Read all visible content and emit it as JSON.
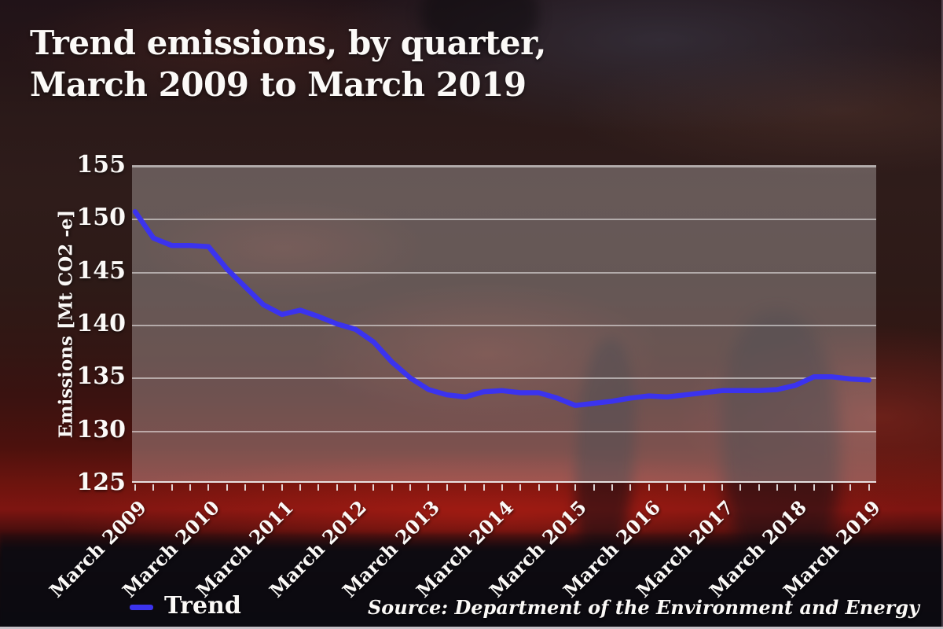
{
  "title": {
    "line1": "Trend emissions, by quarter,",
    "line2": "March 2009 to March 2019"
  },
  "y_axis": {
    "label": "Emissions [Mt CO2 -e]",
    "ticks": [
      155,
      150,
      145,
      140,
      135,
      130,
      125
    ]
  },
  "x_axis": {
    "shown_labels": [
      "March 2009",
      "March 2010",
      "March 2011",
      "March 2012",
      "March 2013",
      "March 2014",
      "March 2015",
      "March 2016",
      "March 2017",
      "March 2018",
      "March 2019"
    ],
    "quarters_per_shown_label": 4
  },
  "legend": {
    "label": "Trend",
    "color": "#3b33ee"
  },
  "source": "Source: Department of the Environment and Energy",
  "colors": {
    "line": "#3b33ee",
    "text": "#fbf9f7",
    "plot_overlay": "rgba(255,255,255,0.27)"
  },
  "chart_data": {
    "type": "line",
    "title": "Trend emissions, by quarter, March 2009 to March 2019",
    "ylabel": "Emissions [Mt CO2 -e]",
    "xlabel": "",
    "ylim": [
      125,
      155
    ],
    "grid": "horizontal",
    "legend_position": "bottom-left",
    "line_color": "#3b33ee",
    "x": [
      "Mar 2009",
      "Jun 2009",
      "Sep 2009",
      "Dec 2009",
      "Mar 2010",
      "Jun 2010",
      "Sep 2010",
      "Dec 2010",
      "Mar 2011",
      "Jun 2011",
      "Sep 2011",
      "Dec 2011",
      "Mar 2012",
      "Jun 2012",
      "Sep 2012",
      "Dec 2012",
      "Mar 2013",
      "Jun 2013",
      "Sep 2013",
      "Dec 2013",
      "Mar 2014",
      "Jun 2014",
      "Sep 2014",
      "Dec 2014",
      "Mar 2015",
      "Jun 2015",
      "Sep 2015",
      "Dec 2015",
      "Mar 2016",
      "Jun 2016",
      "Sep 2016",
      "Dec 2016",
      "Mar 2017",
      "Jun 2017",
      "Sep 2017",
      "Dec 2017",
      "Mar 2018",
      "Jun 2018",
      "Sep 2018",
      "Dec 2018",
      "Mar 2019"
    ],
    "series": [
      {
        "name": "Trend",
        "values": [
          150.6,
          148.1,
          147.4,
          147.4,
          147.3,
          145.2,
          143.5,
          141.8,
          140.9,
          141.3,
          140.7,
          140.0,
          139.5,
          138.3,
          136.4,
          134.9,
          133.8,
          133.3,
          133.1,
          133.6,
          133.7,
          133.5,
          133.5,
          133.0,
          132.3,
          132.5,
          132.7,
          133.0,
          133.2,
          133.1,
          133.3,
          133.5,
          133.7,
          133.7,
          133.7,
          133.8,
          134.2,
          135.0,
          135.0,
          134.8,
          134.7
        ]
      }
    ]
  }
}
